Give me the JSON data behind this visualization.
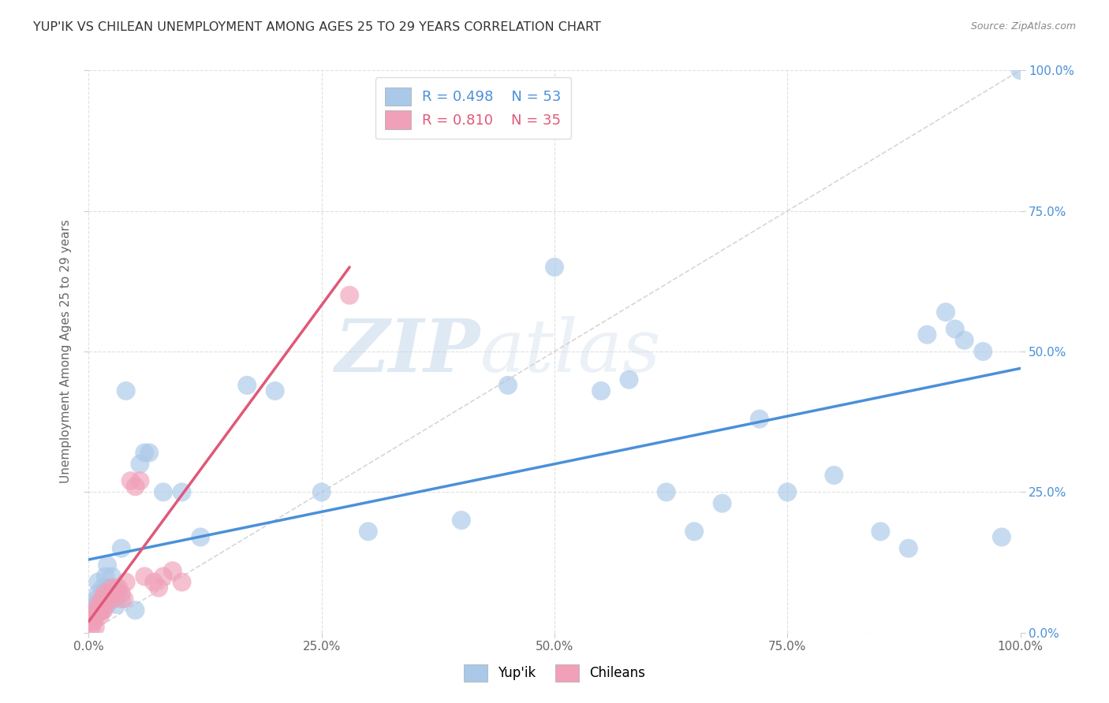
{
  "title": "YUP'IK VS CHILEAN UNEMPLOYMENT AMONG AGES 25 TO 29 YEARS CORRELATION CHART",
  "source": "Source: ZipAtlas.com",
  "ylabel": "Unemployment Among Ages 25 to 29 years",
  "xlim": [
    0,
    1.0
  ],
  "ylim": [
    0,
    1.0
  ],
  "xtick_labels": [
    "0.0%",
    "25.0%",
    "50.0%",
    "75.0%",
    "100.0%"
  ],
  "xtick_values": [
    0,
    0.25,
    0.5,
    0.75,
    1.0
  ],
  "ytick_values": [
    0,
    0.25,
    0.5,
    0.75,
    1.0
  ],
  "right_ytick_labels": [
    "0.0%",
    "25.0%",
    "50.0%",
    "75.0%",
    "100.0%"
  ],
  "background_color": "#ffffff",
  "watermark_zip": "ZIP",
  "watermark_atlas": "atlas",
  "legend_R_blue": "R = 0.498",
  "legend_N_blue": "N = 53",
  "legend_R_pink": "R = 0.810",
  "legend_N_pink": "N = 35",
  "blue_color": "#aac8e8",
  "pink_color": "#f0a0b8",
  "blue_line_color": "#4a90d9",
  "pink_line_color": "#e05878",
  "ref_line_color": "#cccccc",
  "grid_color": "#cccccc",
  "title_color": "#333333",
  "yup_x": [
    0.005,
    0.007,
    0.008,
    0.009,
    0.01,
    0.01,
    0.01,
    0.012,
    0.015,
    0.015,
    0.015,
    0.018,
    0.02,
    0.02,
    0.02,
    0.025,
    0.025,
    0.03,
    0.03,
    0.035,
    0.035,
    0.04,
    0.05,
    0.055,
    0.06,
    0.065,
    0.08,
    0.1,
    0.12,
    0.17,
    0.2,
    0.25,
    0.3,
    0.4,
    0.45,
    0.5,
    0.55,
    0.58,
    0.62,
    0.65,
    0.68,
    0.72,
    0.75,
    0.8,
    0.85,
    0.88,
    0.9,
    0.92,
    0.93,
    0.94,
    0.96,
    0.98,
    1.0
  ],
  "yup_y": [
    0.03,
    0.05,
    0.04,
    0.06,
    0.035,
    0.07,
    0.09,
    0.05,
    0.04,
    0.06,
    0.08,
    0.1,
    0.05,
    0.08,
    0.12,
    0.06,
    0.1,
    0.05,
    0.08,
    0.06,
    0.15,
    0.43,
    0.04,
    0.3,
    0.32,
    0.32,
    0.25,
    0.25,
    0.17,
    0.44,
    0.43,
    0.25,
    0.18,
    0.2,
    0.44,
    0.65,
    0.43,
    0.45,
    0.25,
    0.18,
    0.23,
    0.38,
    0.25,
    0.28,
    0.18,
    0.15,
    0.53,
    0.57,
    0.54,
    0.52,
    0.5,
    0.17,
    1.0
  ],
  "chile_x": [
    0.003,
    0.004,
    0.005,
    0.006,
    0.007,
    0.008,
    0.009,
    0.01,
    0.01,
    0.012,
    0.013,
    0.014,
    0.015,
    0.016,
    0.017,
    0.018,
    0.02,
    0.022,
    0.025,
    0.027,
    0.03,
    0.032,
    0.035,
    0.038,
    0.04,
    0.045,
    0.05,
    0.055,
    0.06,
    0.07,
    0.075,
    0.08,
    0.09,
    0.1,
    0.28
  ],
  "chile_y": [
    0.01,
    0.02,
    0.02,
    0.03,
    0.01,
    0.035,
    0.04,
    0.035,
    0.05,
    0.03,
    0.04,
    0.06,
    0.05,
    0.04,
    0.07,
    0.05,
    0.06,
    0.07,
    0.08,
    0.06,
    0.07,
    0.08,
    0.07,
    0.06,
    0.09,
    0.27,
    0.26,
    0.27,
    0.1,
    0.09,
    0.08,
    0.1,
    0.11,
    0.09,
    0.6
  ],
  "blue_trendline_x": [
    0.0,
    1.0
  ],
  "blue_trendline_y": [
    0.13,
    0.47
  ],
  "pink_trendline_x": [
    0.0,
    0.28
  ],
  "pink_trendline_y": [
    0.02,
    0.65
  ],
  "ref_line_x": [
    0.0,
    1.0
  ],
  "ref_line_y": [
    0.0,
    1.0
  ]
}
